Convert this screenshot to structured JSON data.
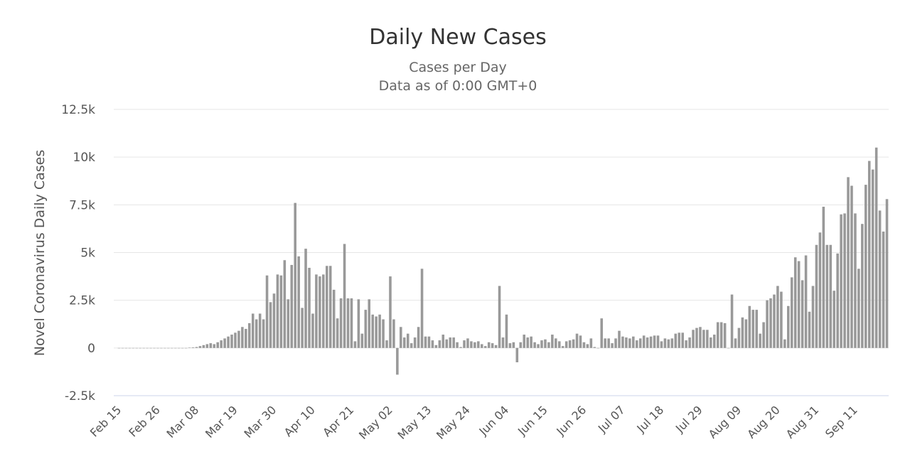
{
  "chart_data": {
    "type": "bar",
    "title": "Daily New Cases",
    "subtitle": "Cases per Day",
    "subtitle2": "Data as of 0:00 GMT+0",
    "ylabel": "Novel Coronavirus Daily Cases",
    "xlabel": "",
    "ylim": [
      -2500,
      12500
    ],
    "yticks": [
      -2500,
      0,
      2500,
      5000,
      7500,
      10000,
      12500
    ],
    "ytick_labels": [
      "-2.5k",
      "0",
      "2.5k",
      "5k",
      "7.5k",
      "10k",
      "12.5k"
    ],
    "xtick_labels": [
      "Feb 15",
      "Feb 26",
      "Mar 08",
      "Mar 19",
      "Mar 30",
      "Apr 10",
      "Apr 21",
      "May 02",
      "May 13",
      "May 24",
      "Jun 04",
      "Jun 15",
      "Jun 26",
      "Jul 07",
      "Jul 18",
      "Jul 29",
      "Aug 09",
      "Aug 20",
      "Aug 31",
      "Sep 11"
    ],
    "grid": true,
    "legend": false,
    "bar_color": "#999999",
    "series": [
      {
        "values": [
          0,
          0,
          0,
          0,
          0,
          0,
          0,
          0,
          0,
          0,
          0,
          0,
          0,
          0,
          0,
          0,
          0,
          0,
          0,
          0,
          20,
          30,
          50,
          100,
          150,
          200,
          250,
          200,
          300,
          400,
          500,
          600,
          700,
          800,
          900,
          1100,
          1000,
          1300,
          1800,
          1500,
          1800,
          1500,
          3800,
          2400,
          2850,
          3850,
          3800,
          4600,
          2550,
          4350,
          7600,
          4800,
          2100,
          5200,
          4200,
          1800,
          3850,
          3750,
          3850,
          4300,
          4300,
          3050,
          1550,
          2600,
          5450,
          2600,
          2600,
          350,
          2550,
          750,
          2000,
          2550,
          1750,
          1650,
          1750,
          1500,
          400,
          3750,
          1500,
          -1400,
          1100,
          550,
          750,
          250,
          550,
          1100,
          4150,
          600,
          600,
          400,
          150,
          400,
          700,
          450,
          550,
          550,
          300,
          50,
          400,
          500,
          350,
          300,
          350,
          200,
          100,
          300,
          250,
          150,
          3250,
          550,
          1750,
          250,
          300,
          -750,
          300,
          700,
          550,
          600,
          300,
          200,
          400,
          450,
          300,
          700,
          500,
          350,
          100,
          350,
          400,
          450,
          750,
          650,
          300,
          200,
          500,
          50,
          0,
          1550,
          500,
          500,
          250,
          500,
          900,
          600,
          550,
          500,
          600,
          400,
          500,
          650,
          550,
          600,
          650,
          650,
          350,
          500,
          450,
          500,
          750,
          800,
          800,
          400,
          550,
          950,
          1050,
          1100,
          950,
          950,
          550,
          700,
          1350,
          1350,
          1300,
          0,
          2800,
          500,
          1050,
          1600,
          1500,
          2200,
          2000,
          2000,
          750,
          1350,
          2500,
          2600,
          2800,
          3250,
          2950,
          450,
          2200,
          3700,
          4750,
          4550,
          3550,
          4850,
          1900,
          3250,
          5400,
          6050,
          7400,
          5400,
          5400,
          3000,
          4950,
          7000,
          7050,
          8950,
          8500,
          7050,
          4150,
          6500,
          8550,
          9800,
          9350,
          10500,
          7200,
          6100,
          7800
        ]
      }
    ]
  }
}
